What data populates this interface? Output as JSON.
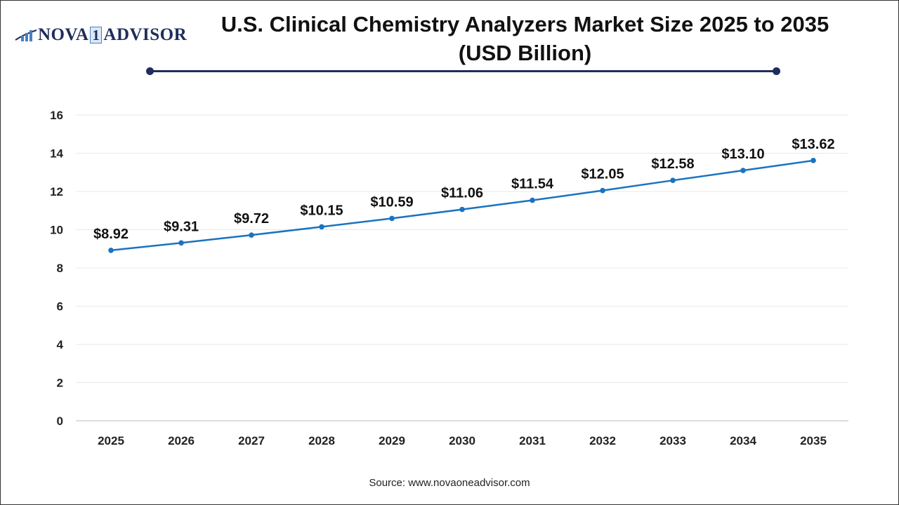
{
  "brand": {
    "logo_text_left": "NOVA",
    "logo_text_num": "1",
    "logo_text_right": "ADVISOR",
    "color": "#1f2d5c"
  },
  "header": {
    "title_line1": "U.S. Clinical Chemistry Analyzers Market Size 2025 to 2035",
    "title_line2": "(USD Billion)"
  },
  "footer": {
    "source": "Source: www.novaoneadvisor.com"
  },
  "chart_data": {
    "type": "line",
    "title": "U.S. Clinical Chemistry Analyzers Market Size 2025 to 2035 (USD Billion)",
    "categories": [
      "2025",
      "2026",
      "2027",
      "2028",
      "2029",
      "2030",
      "2031",
      "2032",
      "2033",
      "2034",
      "2035"
    ],
    "series": [
      {
        "values": [
          8.92,
          9.31,
          9.72,
          10.15,
          10.59,
          11.06,
          11.54,
          12.05,
          12.58,
          13.1,
          13.62
        ],
        "color": "#1a73c0"
      }
    ],
    "data_labels": [
      "$8.92",
      "$9.31",
      "$9.72",
      "$10.15",
      "$10.59",
      "$11.06",
      "$11.54",
      "$12.05",
      "$12.58",
      "$13.10",
      "$13.62"
    ],
    "ylim": [
      0,
      16
    ],
    "yticks": [
      0,
      2,
      4,
      6,
      8,
      10,
      12,
      14,
      16
    ],
    "grid": true,
    "legend": "none"
  }
}
